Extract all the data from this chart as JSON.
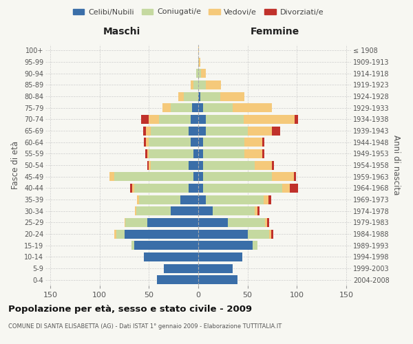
{
  "age_groups": [
    "0-4",
    "5-9",
    "10-14",
    "15-19",
    "20-24",
    "25-29",
    "30-34",
    "35-39",
    "40-44",
    "45-49",
    "50-54",
    "55-59",
    "60-64",
    "65-69",
    "70-74",
    "75-79",
    "80-84",
    "85-89",
    "90-94",
    "95-99",
    "100+"
  ],
  "birth_years": [
    "2004-2008",
    "1999-2003",
    "1994-1998",
    "1989-1993",
    "1984-1988",
    "1979-1983",
    "1974-1978",
    "1969-1973",
    "1964-1968",
    "1959-1963",
    "1954-1958",
    "1949-1953",
    "1944-1948",
    "1939-1943",
    "1934-1938",
    "1929-1933",
    "1924-1928",
    "1919-1923",
    "1914-1918",
    "1909-1913",
    "≤ 1908"
  ],
  "males_celibi": [
    42,
    35,
    55,
    65,
    75,
    52,
    28,
    18,
    10,
    5,
    10,
    5,
    8,
    10,
    8,
    6,
    0,
    0,
    0,
    0,
    0
  ],
  "males_coniugati": [
    0,
    0,
    0,
    3,
    8,
    22,
    35,
    42,
    55,
    80,
    38,
    45,
    42,
    38,
    32,
    22,
    15,
    5,
    2,
    0,
    0
  ],
  "males_vedovi": [
    0,
    0,
    0,
    0,
    2,
    1,
    1,
    2,
    2,
    5,
    2,
    2,
    3,
    5,
    10,
    8,
    5,
    3,
    0,
    0,
    0
  ],
  "males_divorziati": [
    0,
    0,
    0,
    0,
    0,
    0,
    0,
    0,
    2,
    0,
    2,
    2,
    2,
    3,
    8,
    0,
    0,
    0,
    0,
    0,
    0
  ],
  "females_nubili": [
    40,
    35,
    45,
    55,
    50,
    30,
    15,
    8,
    5,
    5,
    5,
    5,
    5,
    8,
    8,
    5,
    2,
    0,
    0,
    0,
    0
  ],
  "females_coniugate": [
    0,
    0,
    0,
    5,
    22,
    38,
    42,
    58,
    80,
    70,
    52,
    42,
    42,
    42,
    38,
    30,
    20,
    8,
    3,
    1,
    0
  ],
  "females_vedove": [
    0,
    0,
    0,
    0,
    2,
    2,
    3,
    5,
    8,
    22,
    18,
    18,
    18,
    25,
    52,
    40,
    25,
    15,
    5,
    1,
    1
  ],
  "females_divorziate": [
    0,
    0,
    0,
    0,
    2,
    2,
    2,
    3,
    8,
    2,
    2,
    2,
    2,
    8,
    3,
    0,
    0,
    0,
    0,
    0,
    0
  ],
  "color_celibi": "#3a6ea8",
  "color_coniugati": "#c5d9a0",
  "color_vedovi": "#f5c97a",
  "color_divorziati": "#c0312b",
  "xlim": 155,
  "title": "Popolazione per età, sesso e stato civile - 2009",
  "subtitle": "COMUNE DI SANTA ELISABETTA (AG) - Dati ISTAT 1° gennaio 2009 - Elaborazione TUTTITALIA.IT",
  "ylabel_left": "Fasce di età",
  "ylabel_right": "Anni di nascita",
  "header_maschi": "Maschi",
  "header_femmine": "Femmine",
  "legend_labels": [
    "Celibi/Nubili",
    "Coniugati/e",
    "Vedovi/e",
    "Divorziati/e"
  ],
  "bg_color": "#f7f7f2",
  "grid_color": "#cccccc",
  "xtick_vals": [
    -150,
    -100,
    -50,
    0,
    50,
    100,
    150
  ]
}
